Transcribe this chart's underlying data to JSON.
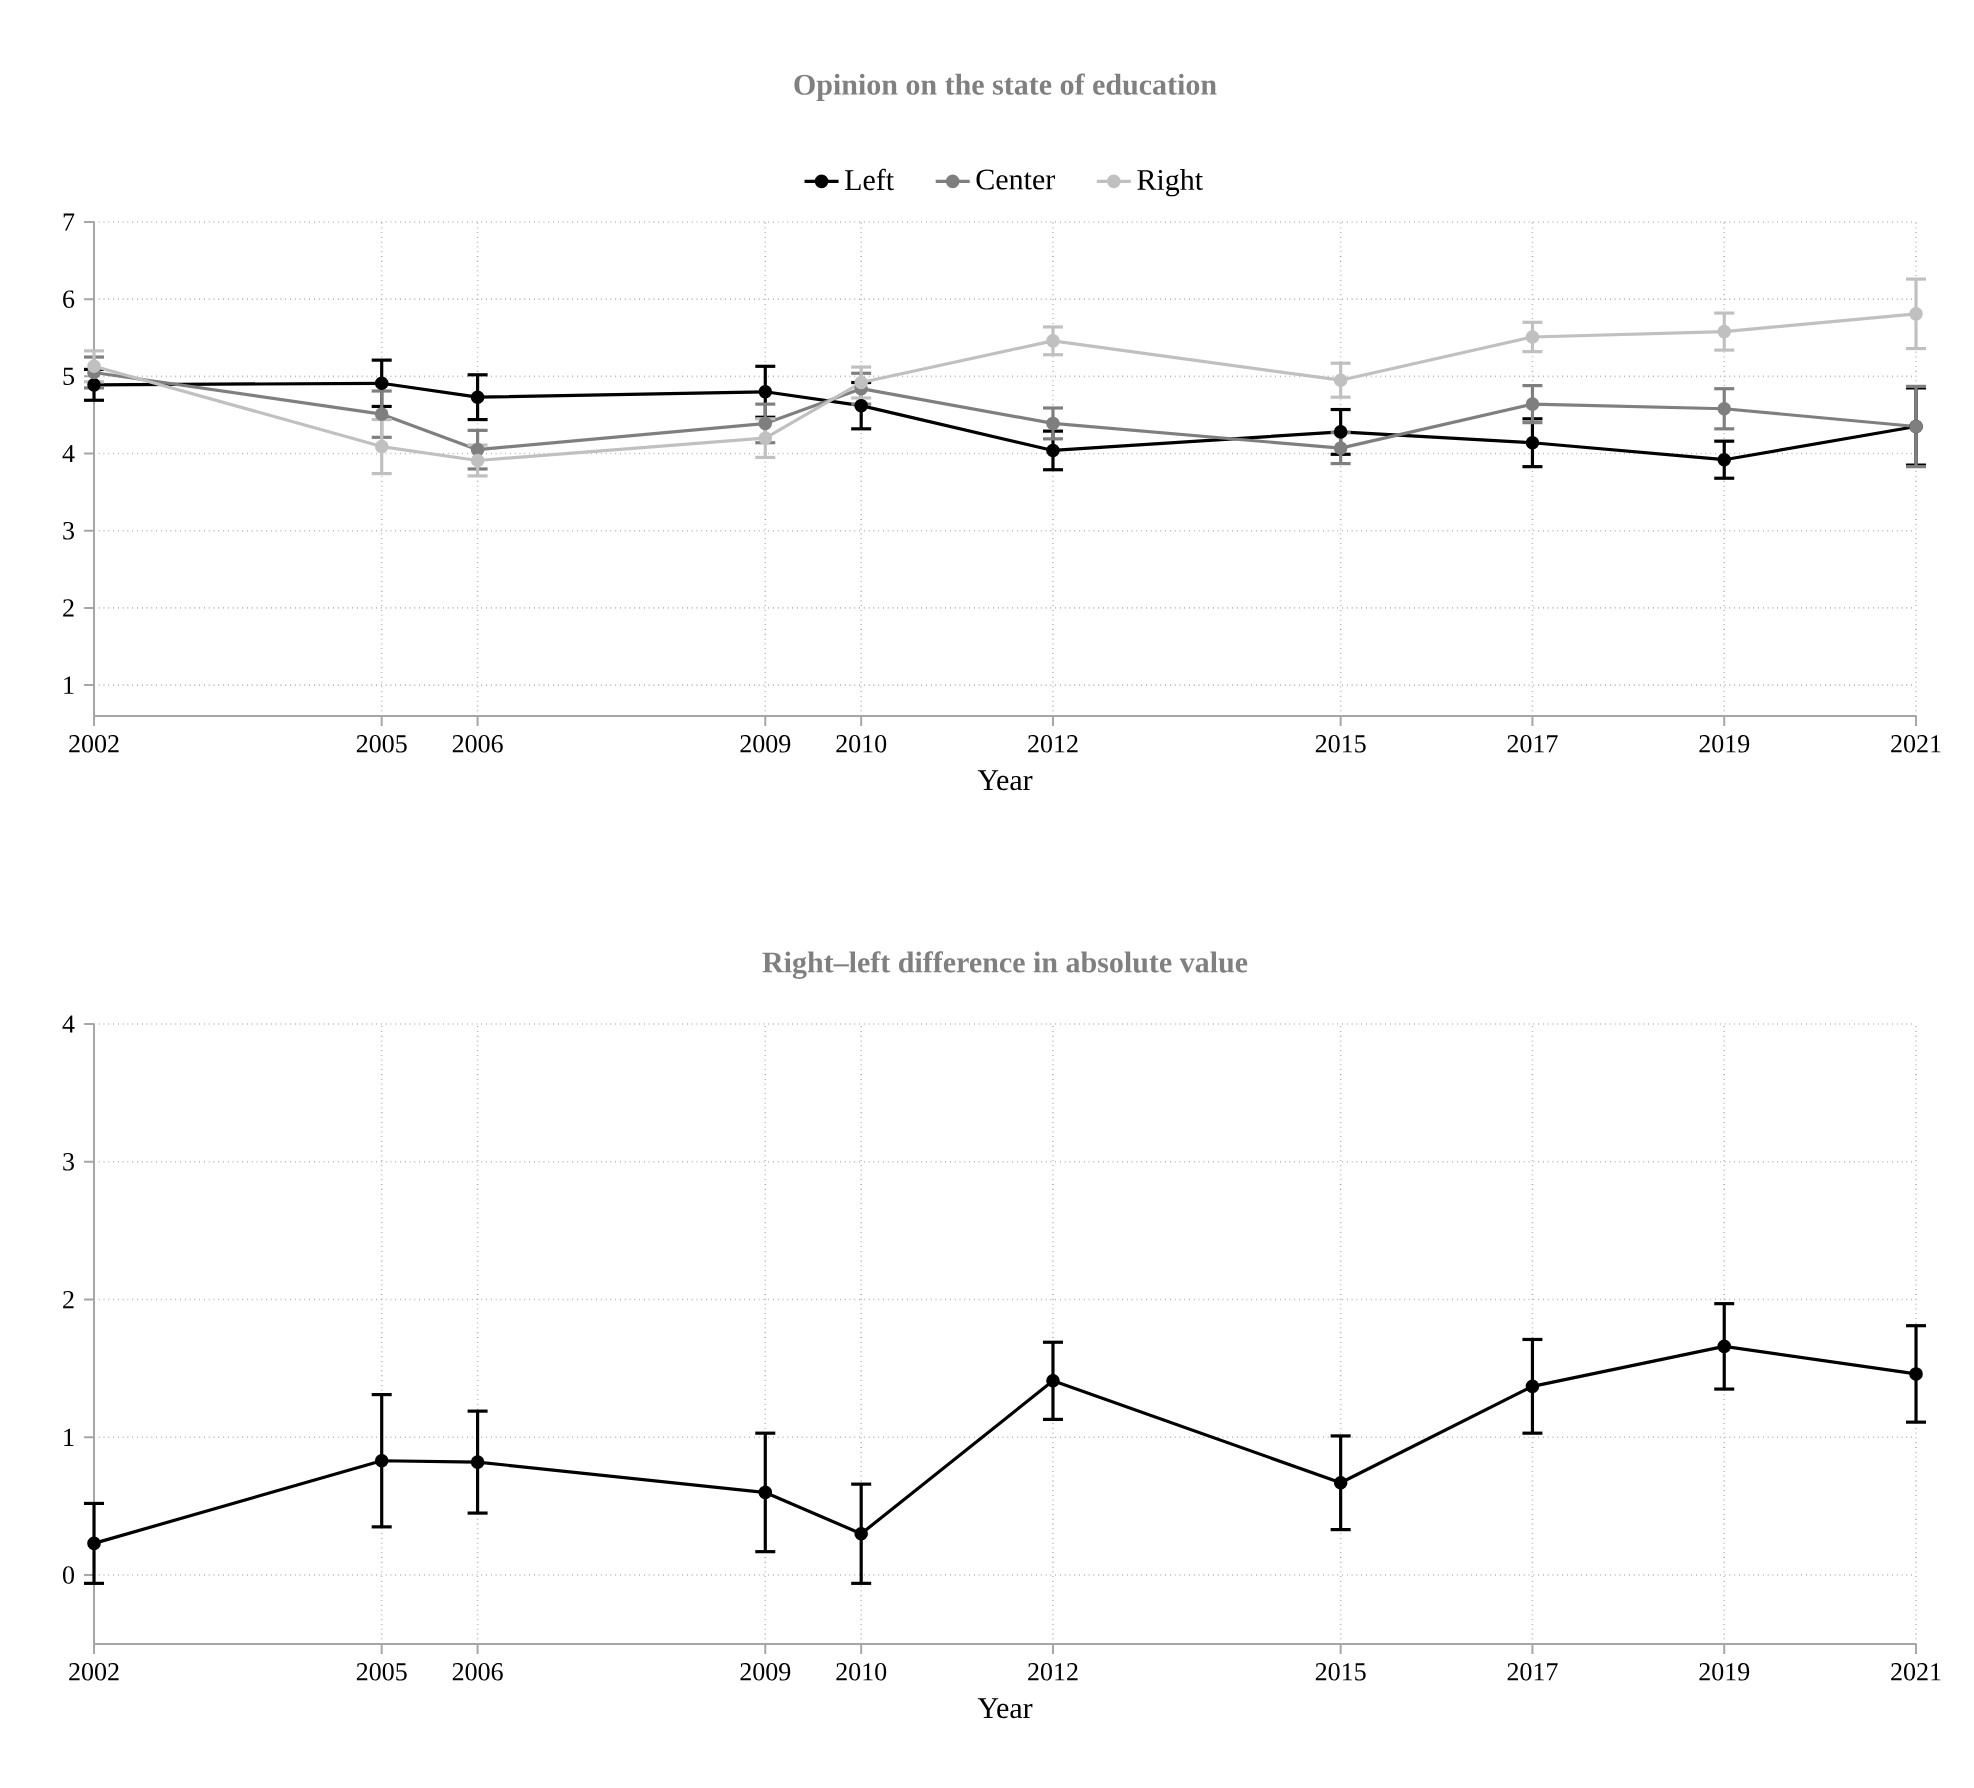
{
  "chart_data": [
    {
      "type": "line",
      "title": "Opinion on the state of education",
      "xlabel": "Year",
      "x": [
        2002,
        2005,
        2006,
        2009,
        2010,
        2012,
        2015,
        2017,
        2019,
        2021
      ],
      "series": [
        {
          "name": "Left",
          "color": "#000000",
          "values": [
            4.89,
            4.91,
            4.73,
            4.8,
            4.62,
            4.04,
            4.28,
            4.14,
            3.92,
            4.35
          ],
          "errors": [
            0.2,
            0.3,
            0.29,
            0.33,
            0.3,
            0.25,
            0.29,
            0.31,
            0.24,
            0.5
          ]
        },
        {
          "name": "Center",
          "color": "#7f7f7f",
          "values": [
            5.05,
            4.51,
            4.05,
            4.39,
            4.84,
            4.39,
            4.07,
            4.64,
            4.58,
            4.35
          ],
          "errors": [
            0.2,
            0.3,
            0.25,
            0.25,
            0.2,
            0.2,
            0.2,
            0.24,
            0.26,
            0.52
          ]
        },
        {
          "name": "Right",
          "color": "#c0c0c0",
          "values": [
            5.13,
            4.09,
            3.91,
            4.2,
            4.92,
            5.46,
            4.95,
            5.51,
            5.58,
            5.81
          ],
          "errors": [
            0.2,
            0.35,
            0.2,
            0.25,
            0.2,
            0.18,
            0.22,
            0.19,
            0.24,
            0.45
          ]
        }
      ],
      "xlim": [
        2002,
        2021
      ],
      "xticks": [
        2002,
        2005,
        2006,
        2009,
        2010,
        2012,
        2015,
        2017,
        2019,
        2021
      ],
      "ylim": [
        0.6,
        7
      ],
      "yticks": [
        1,
        2,
        3,
        4,
        5,
        6,
        7
      ],
      "grid": true,
      "legend": "top",
      "marker": "circle",
      "line_style": "solid"
    },
    {
      "type": "line",
      "title": "Right–left difference in absolute value",
      "xlabel": "Year",
      "x": [
        2002,
        2005,
        2006,
        2009,
        2010,
        2012,
        2015,
        2017,
        2019,
        2021
      ],
      "values": [
        0.23,
        0.83,
        0.82,
        0.6,
        0.3,
        1.41,
        0.67,
        1.37,
        1.66,
        1.46
      ],
      "color": "#000000",
      "errors": [
        0.29,
        0.48,
        0.37,
        0.43,
        0.36,
        0.28,
        0.34,
        0.34,
        0.31,
        0.35
      ],
      "xlim": [
        2002,
        2021
      ],
      "xticks": [
        2002,
        2005,
        2006,
        2009,
        2010,
        2012,
        2015,
        2017,
        2019,
        2021
      ],
      "ylim": [
        -0.5,
        4
      ],
      "yticks": [
        0,
        1,
        2,
        3,
        4
      ],
      "grid": true,
      "marker": "circle",
      "line_style": "solid"
    }
  ]
}
